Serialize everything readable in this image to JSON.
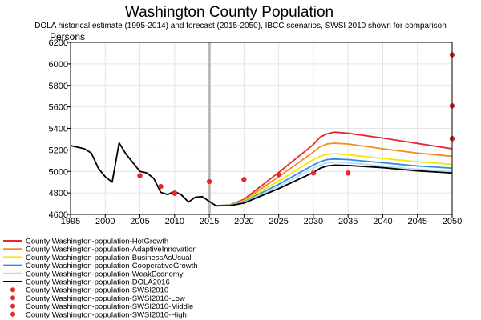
{
  "chart_data": {
    "type": "line",
    "title": "Washington County Population",
    "subtitle": "DOLA historical estimate (1995-2014) and forecast (2015-2050), IBCC scenarios, SWSI 2010 shown for comparison",
    "ylabel": "Persons",
    "xlabel": "",
    "xlim": [
      1995,
      2050
    ],
    "ylim": [
      4600,
      6200
    ],
    "x_ticks": [
      1995,
      2000,
      2005,
      2010,
      2015,
      2020,
      2025,
      2030,
      2035,
      2040,
      2045,
      2050
    ],
    "y_ticks": [
      4600,
      4800,
      5000,
      5200,
      5400,
      5600,
      5800,
      6000,
      6200
    ],
    "grid": true,
    "reference_line": {
      "x": 2015,
      "color": "#bbbbbb"
    },
    "legend_placement": "bottom-left",
    "series": [
      {
        "name": "County:Washington-population-HotGrowth",
        "color": "#e8262b",
        "style": "line",
        "points": [
          [
            2016,
            4680
          ],
          [
            2018,
            4690
          ],
          [
            2020,
            4740
          ],
          [
            2025,
            4990
          ],
          [
            2030,
            5250
          ],
          [
            2031,
            5320
          ],
          [
            2032,
            5350
          ],
          [
            2033,
            5365
          ],
          [
            2035,
            5355
          ],
          [
            2040,
            5310
          ],
          [
            2045,
            5260
          ],
          [
            2050,
            5210
          ]
        ]
      },
      {
        "name": "County:Washington-population-AdaptiveInnovation",
        "color": "#f28c1e",
        "style": "line",
        "points": [
          [
            2016,
            4680
          ],
          [
            2018,
            4690
          ],
          [
            2020,
            4730
          ],
          [
            2025,
            4950
          ],
          [
            2030,
            5180
          ],
          [
            2031,
            5230
          ],
          [
            2032,
            5255
          ],
          [
            2033,
            5262
          ],
          [
            2035,
            5255
          ],
          [
            2040,
            5210
          ],
          [
            2045,
            5170
          ],
          [
            2050,
            5140
          ]
        ]
      },
      {
        "name": "County:Washington-population-BusinessAsUsual",
        "color": "#f7e600",
        "style": "line",
        "points": [
          [
            2016,
            4680
          ],
          [
            2018,
            4688
          ],
          [
            2020,
            4725
          ],
          [
            2025,
            4910
          ],
          [
            2030,
            5110
          ],
          [
            2031,
            5140
          ],
          [
            2032,
            5160
          ],
          [
            2033,
            5165
          ],
          [
            2035,
            5155
          ],
          [
            2040,
            5120
          ],
          [
            2045,
            5090
          ],
          [
            2050,
            5065
          ]
        ]
      },
      {
        "name": "County:Washington-population-CooperativeGrowth",
        "color": "#2f8de4",
        "style": "line",
        "points": [
          [
            2016,
            4680
          ],
          [
            2018,
            4686
          ],
          [
            2020,
            4718
          ],
          [
            2025,
            4880
          ],
          [
            2030,
            5060
          ],
          [
            2031,
            5090
          ],
          [
            2032,
            5110
          ],
          [
            2033,
            5115
          ],
          [
            2035,
            5110
          ],
          [
            2040,
            5080
          ],
          [
            2045,
            5050
          ],
          [
            2050,
            5030
          ]
        ]
      },
      {
        "name": "County:Washington-population-WeakEconomy",
        "color": "#b8dcf5",
        "style": "line",
        "points": [
          [
            2016,
            4680
          ],
          [
            2018,
            4684
          ],
          [
            2020,
            4712
          ],
          [
            2025,
            4860
          ],
          [
            2030,
            5030
          ],
          [
            2031,
            5060
          ],
          [
            2032,
            5080
          ],
          [
            2033,
            5085
          ],
          [
            2035,
            5080
          ],
          [
            2040,
            5050
          ],
          [
            2045,
            5020
          ],
          [
            2050,
            5000
          ]
        ]
      },
      {
        "name": "County:Washington-population-DOLA2016",
        "color": "#000000",
        "style": "line",
        "points": [
          [
            1995,
            5240
          ],
          [
            1996,
            5225
          ],
          [
            1997,
            5210
          ],
          [
            1998,
            5170
          ],
          [
            1999,
            5030
          ],
          [
            2000,
            4950
          ],
          [
            2001,
            4900
          ],
          [
            2002,
            5265
          ],
          [
            2003,
            5160
          ],
          [
            2004,
            5080
          ],
          [
            2005,
            5000
          ],
          [
            2006,
            4985
          ],
          [
            2007,
            4935
          ],
          [
            2008,
            4805
          ],
          [
            2009,
            4785
          ],
          [
            2010,
            4815
          ],
          [
            2011,
            4780
          ],
          [
            2012,
            4715
          ],
          [
            2013,
            4760
          ],
          [
            2014,
            4765
          ],
          [
            2015,
            4720
          ],
          [
            2016,
            4680
          ],
          [
            2018,
            4682
          ],
          [
            2020,
            4705
          ],
          [
            2025,
            4840
          ],
          [
            2030,
            4990
          ],
          [
            2031,
            5030
          ],
          [
            2032,
            5050
          ],
          [
            2033,
            5058
          ],
          [
            2035,
            5055
          ],
          [
            2040,
            5035
          ],
          [
            2045,
            5005
          ],
          [
            2050,
            4985
          ]
        ]
      },
      {
        "name": "County:Washington-population-SWSI2010",
        "color": "#e8262b",
        "style": "marker",
        "points": [
          [
            2005,
            4960
          ],
          [
            2008,
            4860
          ],
          [
            2010,
            4795
          ],
          [
            2015,
            4905
          ],
          [
            2020,
            4925
          ],
          [
            2025,
            4970
          ],
          [
            2030,
            4985
          ],
          [
            2035,
            4985
          ],
          [
            2050,
            5305
          ]
        ]
      },
      {
        "name": "County:Washington-population-SWSI2010-Low",
        "color": "#e8262b",
        "style": "marker",
        "points": [
          [
            2050,
            5305
          ]
        ]
      },
      {
        "name": "County:Washington-population-SWSI2010-Middle",
        "color": "#e8262b",
        "style": "marker",
        "points": [
          [
            2050,
            5610
          ]
        ]
      },
      {
        "name": "County:Washington-population-SWSI2010-High",
        "color": "#e8262b",
        "style": "marker",
        "points": [
          [
            2050,
            6085
          ]
        ]
      }
    ]
  }
}
